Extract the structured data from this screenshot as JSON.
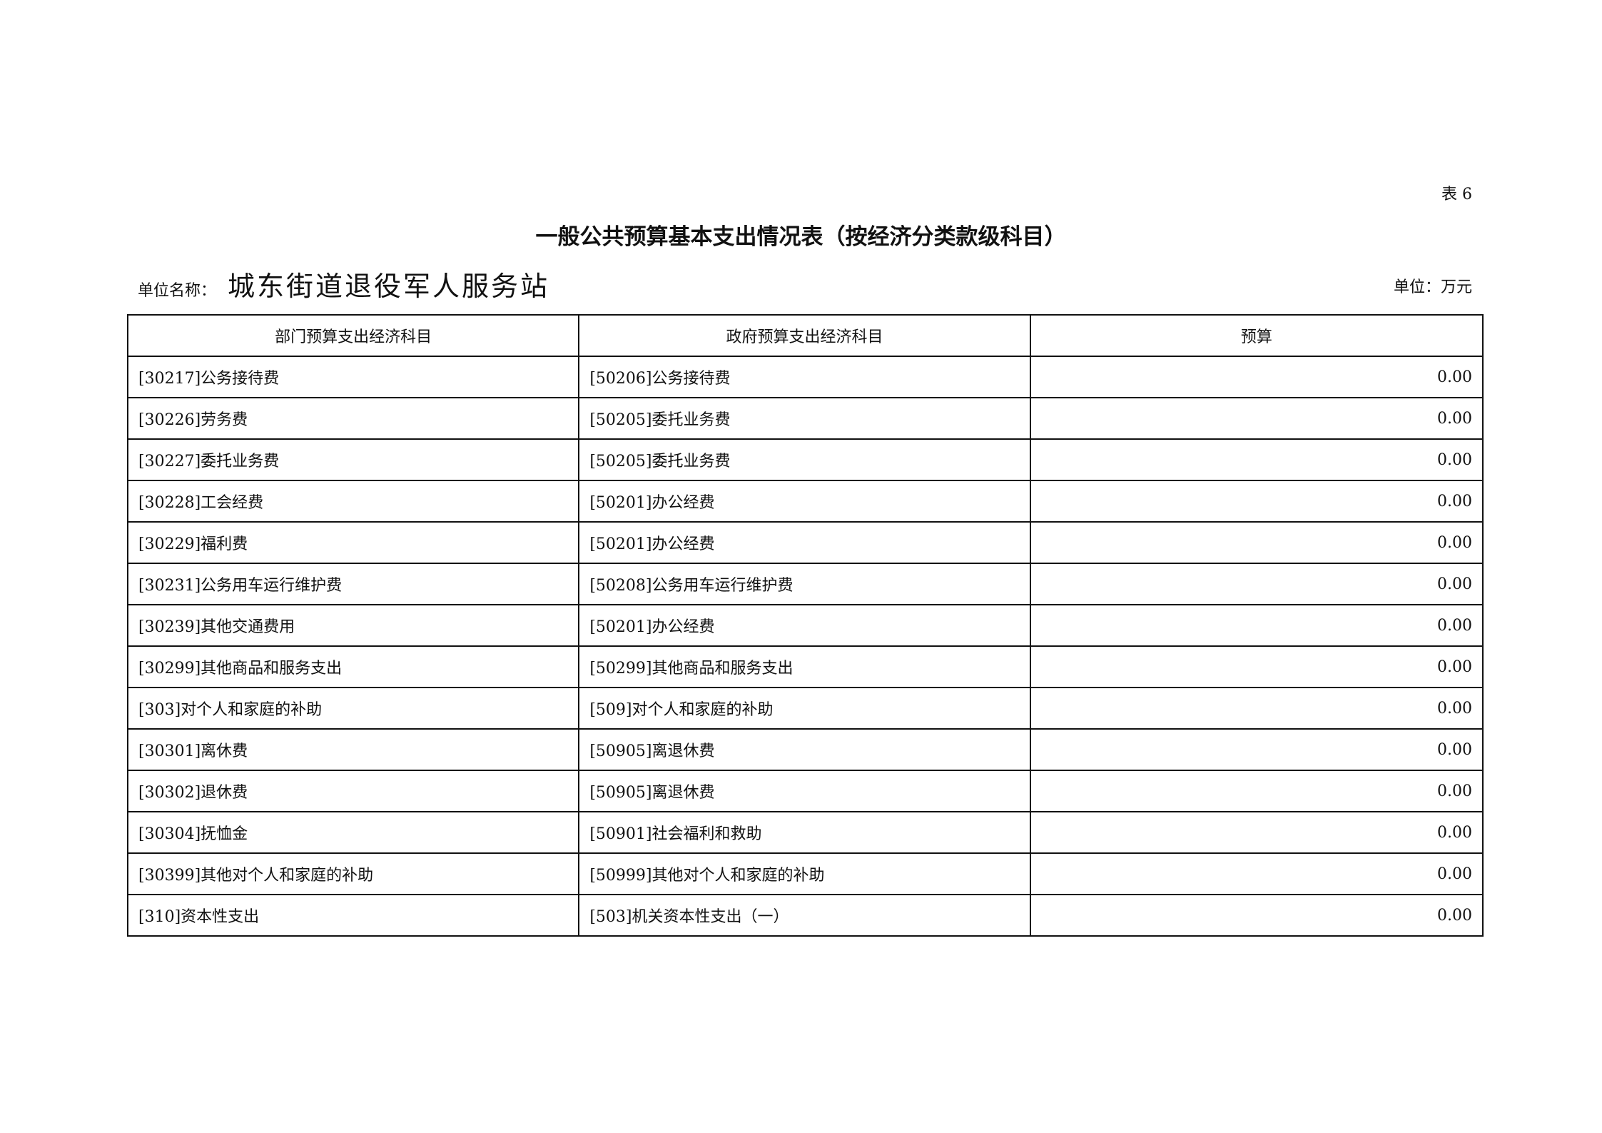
{
  "table_no": "表 6",
  "title": "一般公共预算基本支出情况表（按经济分类款级科目）",
  "unit_name_label": "单位名称：",
  "unit_name": "城东街道退役军人服务站",
  "unit_label": "单位：万元",
  "headers": [
    "部门预算支出经济科目",
    "政府预算支出经济科目",
    "预算"
  ],
  "rows": [
    [
      "[30217]公务接待费",
      "[50206]公务接待费",
      "0.00"
    ],
    [
      "[30226]劳务费",
      "[50205]委托业务费",
      "0.00"
    ],
    [
      "[30227]委托业务费",
      "[50205]委托业务费",
      "0.00"
    ],
    [
      "[30228]工会经费",
      "[50201]办公经费",
      "0.00"
    ],
    [
      "[30229]福利费",
      "[50201]办公经费",
      "0.00"
    ],
    [
      "[30231]公务用车运行维护费",
      "[50208]公务用车运行维护费",
      "0.00"
    ],
    [
      "[30239]其他交通费用",
      "[50201]办公经费",
      "0.00"
    ],
    [
      "[30299]其他商品和服务支出",
      "[50299]其他商品和服务支出",
      "0.00"
    ],
    [
      "[303]对个人和家庭的补助",
      "[509]对个人和家庭的补助",
      "0.00"
    ],
    [
      "[30301]离休费",
      "[50905]离退休费",
      "0.00"
    ],
    [
      "[30302]退休费",
      "[50905]离退休费",
      "0.00"
    ],
    [
      "[30304]抚恤金",
      "[50901]社会福利和救助",
      "0.00"
    ],
    [
      "[30399]其他对个人和家庭的补助",
      "[50999]其他对个人和家庭的补助",
      "0.00"
    ],
    [
      "[310]资本性支出",
      "[503]机关资本性支出（一）",
      "0.00"
    ]
  ]
}
